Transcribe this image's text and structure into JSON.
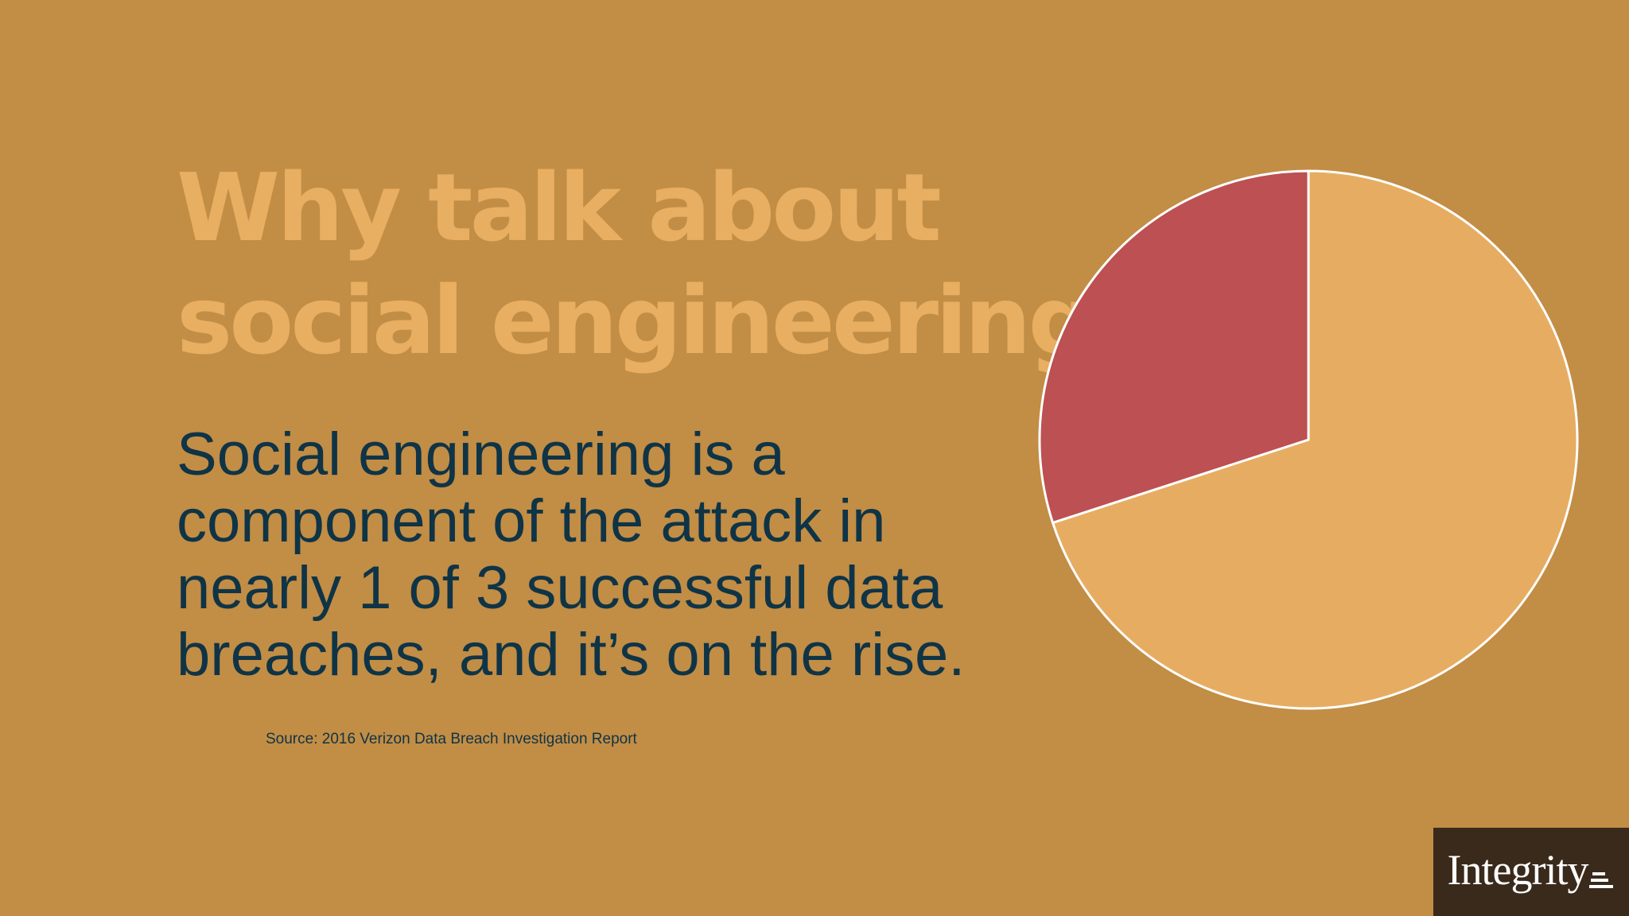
{
  "slide": {
    "title_lines": [
      "Why talk about",
      "social engineering?"
    ],
    "body_lines": [
      "Social engineering is a",
      "component of the attack in",
      "nearly 1 of 3 successful data",
      "breaches, and it’s on the rise."
    ],
    "source": "Source: 2016 Verizon Data Breach Investigation Report",
    "logo_text": "Integrity",
    "logo_mark_icon": "stacked-bars-icon"
  },
  "colors": {
    "background": "#c28d45",
    "title": "#e8ae61",
    "body_text": "#0f3446",
    "source_text": "#0f3446",
    "logo_box": "#3a2a1b",
    "logo_text": "#ffffff",
    "slice_outline": "#ffffff"
  },
  "chart_data": {
    "type": "pie",
    "categories": [
      "",
      ""
    ],
    "values": [
      70,
      30
    ],
    "colors": [
      "#e6ad62",
      "#bc5052"
    ],
    "start_angle_deg": 0,
    "direction": "clockwise",
    "legend": "none"
  }
}
